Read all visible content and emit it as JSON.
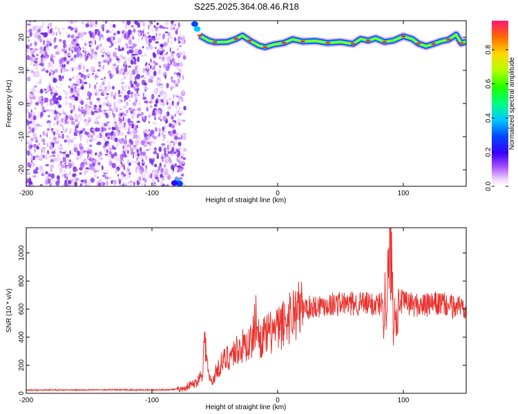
{
  "title": "S225.2025.364.08.46.R18",
  "chart_data": [
    {
      "type": "heatmap",
      "xlabel": "Height of straight line (km)",
      "ylabel": "Frequency (Hz)",
      "xlim": [
        -200,
        150
      ],
      "ylim": [
        -25,
        25
      ],
      "xticks": [
        -200,
        -100,
        0,
        100
      ],
      "yticks": [
        -20,
        -10,
        0,
        10,
        20
      ],
      "noise_region_x": [
        -200,
        -77
      ],
      "ridge": {
        "x_start": -62,
        "x_end": 150,
        "freq": [
          [
            -62,
            20.5
          ],
          [
            -55,
            19.0
          ],
          [
            -50,
            18.5
          ],
          [
            -40,
            18.6
          ],
          [
            -33,
            19.5
          ],
          [
            -28,
            20.5
          ],
          [
            -22,
            19.0
          ],
          [
            -15,
            17.5
          ],
          [
            -10,
            17.0
          ],
          [
            -3,
            17.8
          ],
          [
            5,
            18.3
          ],
          [
            12,
            19.4
          ],
          [
            20,
            18.7
          ],
          [
            30,
            18.9
          ],
          [
            40,
            18.3
          ],
          [
            50,
            18.6
          ],
          [
            60,
            18.0
          ],
          [
            66,
            19.5
          ],
          [
            72,
            19.0
          ],
          [
            78,
            19.7
          ],
          [
            85,
            18.6
          ],
          [
            92,
            19.0
          ],
          [
            100,
            20.3
          ],
          [
            107,
            19.5
          ],
          [
            112,
            18.1
          ],
          [
            118,
            17.3
          ],
          [
            124,
            18.0
          ],
          [
            130,
            18.8
          ],
          [
            136,
            19.3
          ],
          [
            142,
            20.8
          ],
          [
            146,
            18.2
          ],
          [
            150,
            18.7
          ]
        ]
      },
      "colorbar": {
        "label": "Normalized spectral amplitude",
        "ticks": [
          0.0,
          0.2,
          0.4,
          0.6,
          0.8
        ],
        "range": [
          0,
          0.97
        ]
      }
    },
    {
      "type": "line",
      "xlabel": "Height of straight line (km)",
      "ylabel": "SNR (10 * v/v)",
      "xlim": [
        -200,
        150
      ],
      "ylim": [
        0,
        1180
      ],
      "xticks": [
        -200,
        -100,
        0,
        100
      ],
      "yticks": [
        0,
        200,
        400,
        600,
        800,
        1000
      ],
      "color": "#e8332f",
      "series": [
        {
          "x": [
            -200,
            -180,
            -160,
            -140,
            -120,
            -100,
            -85,
            -75,
            -70,
            -65,
            -60,
            -58,
            -55,
            -52,
            -50,
            -45,
            -40,
            -35,
            -30,
            -25,
            -20,
            -17,
            -15,
            -10,
            -5,
            0,
            5,
            10,
            15,
            20,
            25,
            30,
            35,
            40,
            45,
            50,
            55,
            60,
            65,
            70,
            75,
            80,
            85,
            88,
            90,
            92,
            95,
            100,
            105,
            110,
            115,
            120,
            125,
            130,
            135,
            140,
            145,
            150
          ],
          "y": [
            22,
            24,
            23,
            25,
            24,
            24,
            26,
            32,
            58,
            72,
            145,
            400,
            125,
            70,
            135,
            210,
            255,
            290,
            325,
            345,
            375,
            560,
            390,
            405,
            435,
            450,
            500,
            555,
            590,
            605,
            612,
            622,
            628,
            635,
            635,
            640,
            635,
            638,
            641,
            636,
            632,
            636,
            645,
            780,
            1100,
            560,
            660,
            645,
            640,
            630,
            625,
            628,
            635,
            640,
            625,
            615,
            628,
            600
          ]
        }
      ]
    }
  ]
}
